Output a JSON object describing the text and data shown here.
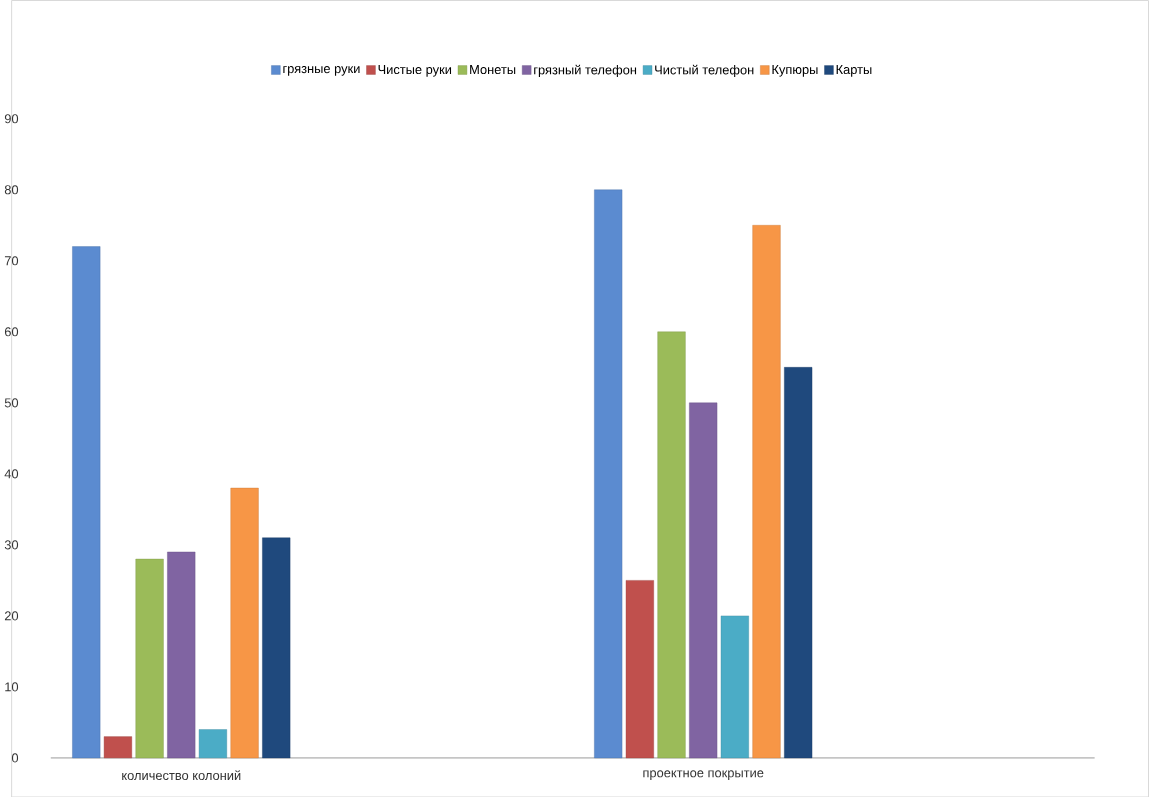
{
  "chart_data": {
    "type": "bar",
    "categories": [
      "количество колоний",
      "проектное покрытие"
    ],
    "series": [
      {
        "name": "грязные руки",
        "color": "#5b8bd0",
        "values": [
          72,
          80
        ]
      },
      {
        "name": "Чистые руки",
        "color": "#c0504d",
        "values": [
          3,
          25
        ]
      },
      {
        "name": "Монеты",
        "color": "#9bbb59",
        "values": [
          28,
          60
        ]
      },
      {
        "name": "грязный телефон",
        "color": "#8064a2",
        "values": [
          29,
          50
        ]
      },
      {
        "name": "Чистый телефон",
        "color": "#4bacc6",
        "values": [
          4,
          20
        ]
      },
      {
        "name": "Купюры",
        "color": "#f79646",
        "values": [
          38,
          75
        ]
      },
      {
        "name": "Карты",
        "color": "#1f497d",
        "values": [
          31,
          55
        ]
      }
    ],
    "ylim": [
      0,
      90
    ],
    "yticks": [
      0,
      10,
      20,
      30,
      40,
      50,
      60,
      70,
      80,
      90
    ],
    "legend": "top"
  }
}
